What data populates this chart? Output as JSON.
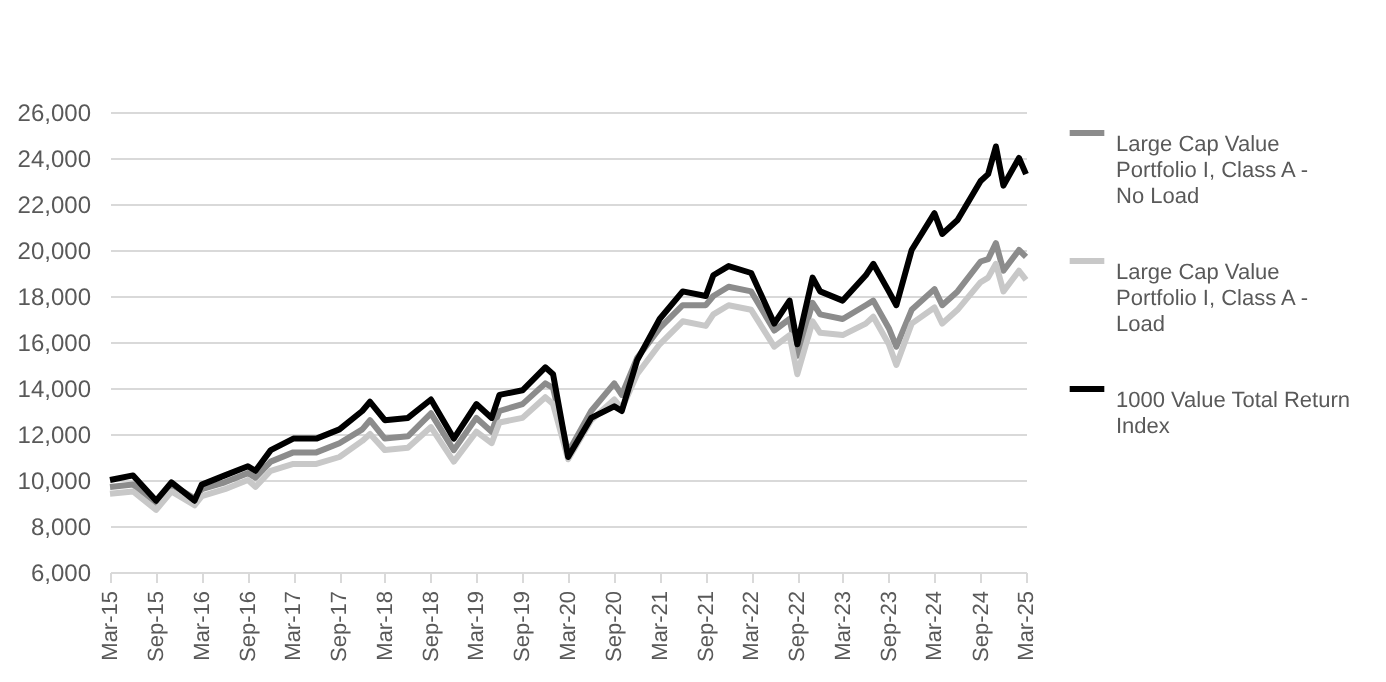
{
  "chart_data": {
    "type": "line",
    "x": [
      "2015-03",
      "2015-06",
      "2015-09",
      "2015-11",
      "2016-02",
      "2016-03",
      "2016-06",
      "2016-09",
      "2016-10",
      "2016-12",
      "2017-03",
      "2017-06",
      "2017-09",
      "2017-12",
      "2018-01",
      "2018-03",
      "2018-06",
      "2018-09",
      "2018-12",
      "2019-03",
      "2019-05",
      "2019-06",
      "2019-09",
      "2019-12",
      "2020-01",
      "2020-03",
      "2020-06",
      "2020-09",
      "2020-10",
      "2020-12",
      "2021-03",
      "2021-06",
      "2021-09",
      "2021-10",
      "2021-12",
      "2022-03",
      "2022-06",
      "2022-08",
      "2022-09",
      "2022-11",
      "2022-12",
      "2023-03",
      "2023-06",
      "2023-07",
      "2023-09",
      "2023-10",
      "2023-12",
      "2024-03",
      "2024-04",
      "2024-06",
      "2024-09",
      "2024-10",
      "2024-11",
      "2024-12",
      "2025-02",
      "2025-03"
    ],
    "series": [
      {
        "name": "Large Cap Value Portfolio I, Class A - No Load",
        "color": "#8c8c8c",
        "values": [
          9700,
          9800,
          9000,
          9800,
          9200,
          9600,
          9900,
          10300,
          10100,
          10800,
          11200,
          11200,
          11600,
          12200,
          12600,
          11800,
          11900,
          12900,
          11300,
          12700,
          12100,
          13000,
          13300,
          14200,
          14000,
          11200,
          13000,
          14200,
          13700,
          15300,
          16600,
          17600,
          17600,
          18000,
          18400,
          18200,
          16500,
          17000,
          15400,
          17700,
          17200,
          17000,
          17600,
          17800,
          16600,
          15800,
          17400,
          18300,
          17600,
          18200,
          19500,
          19600,
          20300,
          19100,
          20000,
          19700
        ]
      },
      {
        "name": "Large Cap Value Portfolio I, Class A - Load",
        "color": "#c8c8c8",
        "values": [
          9400,
          9500,
          8700,
          9500,
          8900,
          9300,
          9600,
          10000,
          9700,
          10400,
          10700,
          10700,
          11000,
          11700,
          12000,
          11300,
          11400,
          12300,
          10800,
          12100,
          11600,
          12500,
          12700,
          13600,
          13300,
          10900,
          12600,
          13500,
          13100,
          14600,
          15900,
          16900,
          16700,
          17200,
          17600,
          17400,
          15800,
          16300,
          14600,
          16900,
          16400,
          16300,
          16800,
          17100,
          15900,
          15000,
          16800,
          17500,
          16800,
          17400,
          18600,
          18800,
          19400,
          18200,
          19100,
          18700
        ]
      },
      {
        "name": "1000 Value Total Return Index",
        "color": "#000000",
        "values": [
          10000,
          10200,
          9100,
          9900,
          9100,
          9800,
          10200,
          10600,
          10400,
          11300,
          11800,
          11800,
          12200,
          13000,
          13400,
          12600,
          12700,
          13500,
          11800,
          13300,
          12700,
          13700,
          13900,
          14900,
          14600,
          11000,
          12700,
          13200,
          13000,
          15200,
          17000,
          18200,
          18000,
          18900,
          19300,
          19000,
          16800,
          17800,
          15900,
          18800,
          18200,
          17800,
          18900,
          19400,
          18200,
          17600,
          20000,
          21600,
          20700,
          21300,
          23000,
          23300,
          24500,
          22800,
          24000,
          23300
        ]
      }
    ],
    "ylim": [
      6000,
      26000
    ],
    "yticks": [
      {
        "value": 6000,
        "label": "6,000"
      },
      {
        "value": 8000,
        "label": "8,000"
      },
      {
        "value": 10000,
        "label": "10,000"
      },
      {
        "value": 12000,
        "label": "12,000"
      },
      {
        "value": 14000,
        "label": "14,000"
      },
      {
        "value": 16000,
        "label": "16,000"
      },
      {
        "value": 18000,
        "label": "18,000"
      },
      {
        "value": 20000,
        "label": "20,000"
      },
      {
        "value": 22000,
        "label": "22,000"
      },
      {
        "value": 24000,
        "label": "24,000"
      },
      {
        "value": 26000,
        "label": "26,000"
      }
    ],
    "xlim": [
      "2015-03",
      "2025-03"
    ],
    "xticks": [
      {
        "value": "2015-03",
        "label": "Mar-15"
      },
      {
        "value": "2015-09",
        "label": "Sep-15"
      },
      {
        "value": "2016-03",
        "label": "Mar-16"
      },
      {
        "value": "2016-09",
        "label": "Sep-16"
      },
      {
        "value": "2017-03",
        "label": "Mar-17"
      },
      {
        "value": "2017-09",
        "label": "Sep-17"
      },
      {
        "value": "2018-03",
        "label": "Mar-18"
      },
      {
        "value": "2018-09",
        "label": "Sep-18"
      },
      {
        "value": "2019-03",
        "label": "Mar-19"
      },
      {
        "value": "2019-09",
        "label": "Sep-19"
      },
      {
        "value": "2020-03",
        "label": "Mar-20"
      },
      {
        "value": "2020-09",
        "label": "Sep-20"
      },
      {
        "value": "2021-03",
        "label": "Mar-21"
      },
      {
        "value": "2021-09",
        "label": "Sep-21"
      },
      {
        "value": "2022-03",
        "label": "Mar-22"
      },
      {
        "value": "2022-09",
        "label": "Sep-22"
      },
      {
        "value": "2023-03",
        "label": "Mar-23"
      },
      {
        "value": "2023-09",
        "label": "Sep-23"
      },
      {
        "value": "2024-03",
        "label": "Mar-24"
      },
      {
        "value": "2024-09",
        "label": "Sep-24"
      },
      {
        "value": "2025-03",
        "label": "Mar-25"
      }
    ],
    "grid": "y",
    "legend": "right",
    "marker": "none",
    "line_style": "solid"
  }
}
